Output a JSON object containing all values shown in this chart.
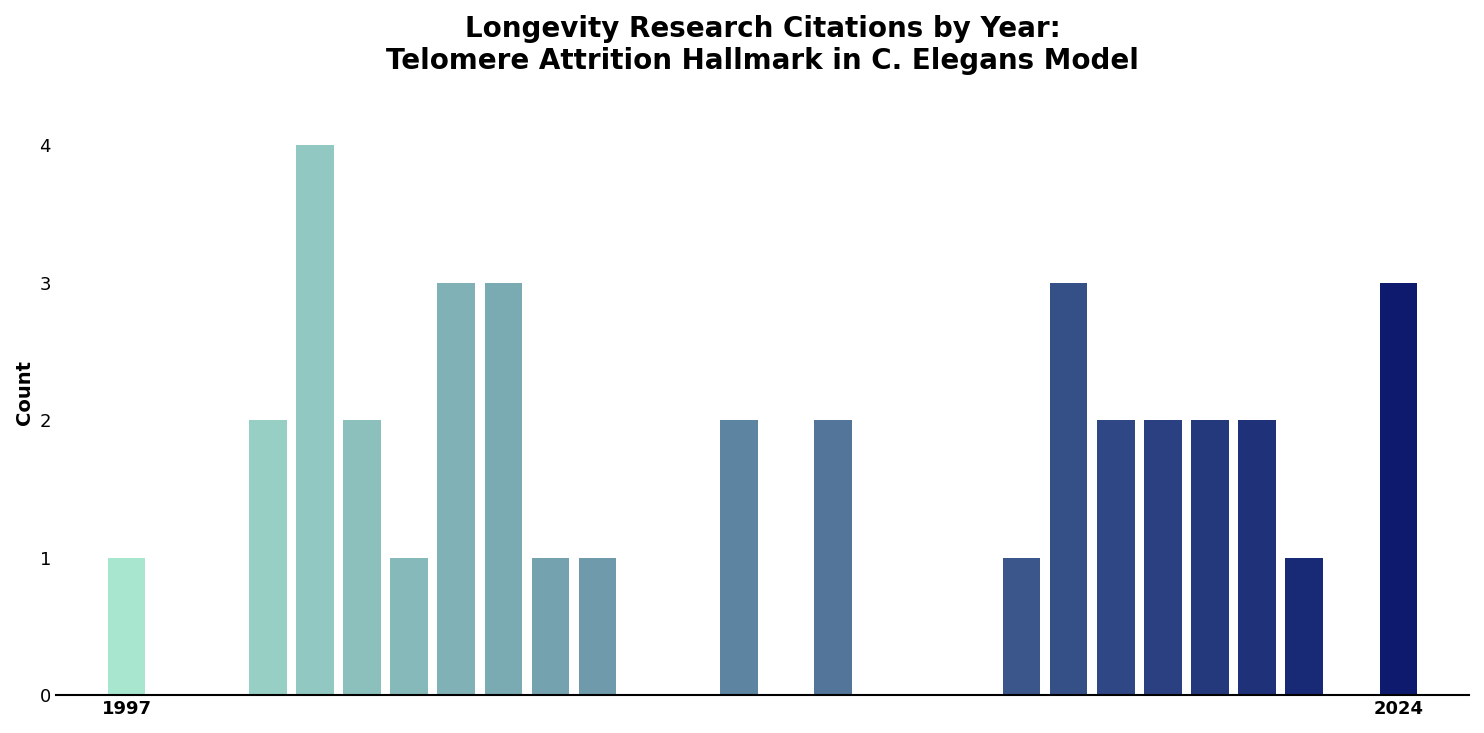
{
  "title_line1": "Longevity Research Citations by Year:",
  "title_line2": "Telomere Attrition Hallmark in C. Elegans Model",
  "ylabel": "Count",
  "years": [
    1997,
    1998,
    1999,
    2000,
    2001,
    2002,
    2003,
    2004,
    2005,
    2006,
    2007,
    2008,
    2009,
    2010,
    2011,
    2012,
    2013,
    2014,
    2015,
    2016,
    2017,
    2018,
    2019,
    2020,
    2021,
    2022,
    2023,
    2024
  ],
  "counts": [
    1,
    0,
    0,
    2,
    4,
    2,
    1,
    3,
    3,
    1,
    1,
    0,
    0,
    2,
    0,
    2,
    0,
    0,
    0,
    1,
    3,
    2,
    2,
    2,
    2,
    1,
    0,
    3
  ],
  "year_start": 1997,
  "year_end": 2024,
  "ylim": [
    0,
    4.4
  ],
  "yticks": [
    0,
    1,
    2,
    3,
    4
  ],
  "xtick_labels": [
    "1997",
    "2024"
  ],
  "xtick_positions": [
    1997,
    2024
  ],
  "color_start": "#a8e6cf",
  "color_end": "#0d1a6e",
  "bar_width": 0.8,
  "background_color": "#ffffff",
  "title_fontsize": 20,
  "axis_fontsize": 14,
  "tick_fontsize": 13
}
